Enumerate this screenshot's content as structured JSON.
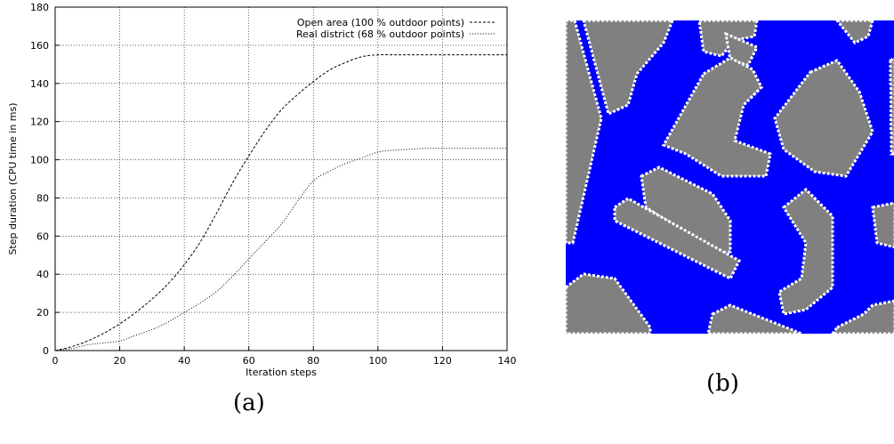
{
  "chart_data": {
    "type": "line",
    "xlabel": "Iteration steps",
    "ylabel": "Step duration (CPU time in ms)",
    "xlim": [
      0,
      140
    ],
    "ylim": [
      0,
      180
    ],
    "xticks": [
      "0",
      "20",
      "40",
      "60",
      "80",
      "100",
      "120",
      "140"
    ],
    "yticks": [
      "0",
      "20",
      "40",
      "60",
      "80",
      "100",
      "120",
      "140",
      "160",
      "180"
    ],
    "grid": true,
    "legend_position": "top-right",
    "series": [
      {
        "name": "Open area (100 % outdoor points)",
        "style": "dashed",
        "x": [
          0,
          5,
          10,
          15,
          20,
          25,
          30,
          35,
          40,
          45,
          50,
          55,
          60,
          65,
          70,
          75,
          80,
          85,
          90,
          95,
          100,
          105,
          110,
          120,
          130,
          140
        ],
        "y": [
          0,
          2,
          5,
          9,
          14,
          20,
          27,
          35,
          45,
          57,
          72,
          88,
          102,
          115,
          126,
          134,
          141,
          147,
          151,
          154,
          155,
          155,
          155,
          155,
          155,
          155
        ]
      },
      {
        "name": "Real district (68 % outdoor points)",
        "style": "dotted",
        "x": [
          0,
          5,
          10,
          15,
          20,
          25,
          30,
          35,
          40,
          45,
          50,
          55,
          60,
          65,
          70,
          75,
          80,
          85,
          90,
          95,
          100,
          105,
          110,
          115,
          120,
          130,
          140
        ],
        "y": [
          0,
          1,
          3,
          4,
          5,
          8,
          11,
          15,
          20,
          25,
          31,
          39,
          48,
          57,
          66,
          78,
          89,
          94,
          98,
          101,
          104,
          105,
          105.5,
          106,
          106,
          106,
          106
        ]
      }
    ]
  },
  "captions": {
    "a": "(a)",
    "b": "(b)"
  },
  "map": {
    "background_color": "#0000ff",
    "building_color": "#808080",
    "outline_color": "#ffffff"
  }
}
